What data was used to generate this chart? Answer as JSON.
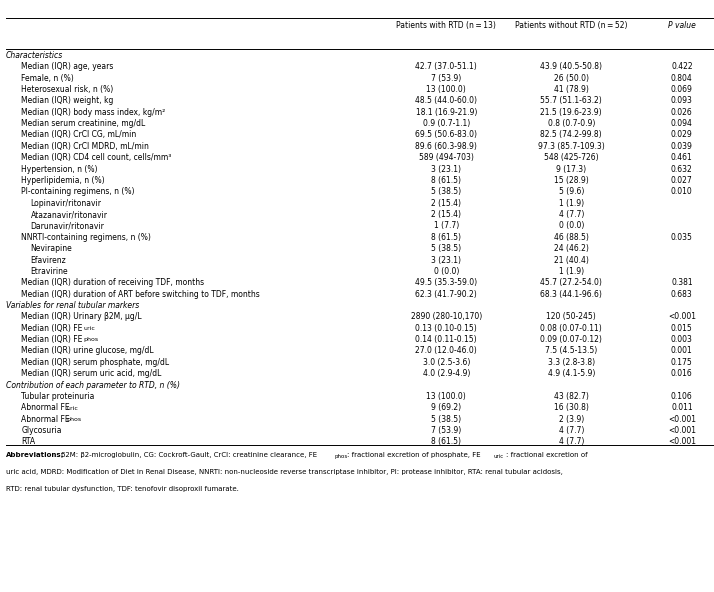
{
  "headers": [
    "Patients with RTD (n = 13)",
    "Patients without RTD (n = 52)",
    "P value"
  ],
  "rows": [
    {
      "text": "Characteristics",
      "col1": "",
      "col2": "",
      "col3": "",
      "italic": true,
      "indent": 0
    },
    {
      "text": "Median (IQR) age, years",
      "col1": "42.7 (37.0-51.1)",
      "col2": "43.9 (40.5-50.8)",
      "col3": "0.422",
      "italic": false,
      "indent": 1
    },
    {
      "text": "Female, n (%)",
      "col1": "7 (53.9)",
      "col2": "26 (50.0)",
      "col3": "0.804",
      "italic": false,
      "indent": 1
    },
    {
      "text": "Heterosexual risk, n (%)",
      "col1": "13 (100.0)",
      "col2": "41 (78.9)",
      "col3": "0.069",
      "italic": false,
      "indent": 1
    },
    {
      "text": "Median (IQR) weight, kg",
      "col1": "48.5 (44.0-60.0)",
      "col2": "55.7 (51.1-63.2)",
      "col3": "0.093",
      "italic": false,
      "indent": 1
    },
    {
      "text": "Median (IQR) body mass index, kg/m²",
      "col1": "18.1 (16.9-21.9)",
      "col2": "21.5 (19.6-23.9)",
      "col3": "0.026",
      "italic": false,
      "indent": 1
    },
    {
      "text": "Median serum creatinine, mg/dL",
      "col1": "0.9 (0.7-1.1)",
      "col2": "0.8 (0.7-0.9)",
      "col3": "0.094",
      "italic": false,
      "indent": 1
    },
    {
      "text": "Median (IQR) CrCl CG, mL/min",
      "col1": "69.5 (50.6-83.0)",
      "col2": "82.5 (74.2-99.8)",
      "col3": "0.029",
      "italic": false,
      "indent": 1
    },
    {
      "text": "Median (IQR) CrCl MDRD, mL/min",
      "col1": "89.6 (60.3-98.9)",
      "col2": "97.3 (85.7-109.3)",
      "col3": "0.039",
      "italic": false,
      "indent": 1
    },
    {
      "text": "Median (IQR) CD4 cell count, cells/mm³",
      "col1": "589 (494-703)",
      "col2": "548 (425-726)",
      "col3": "0.461",
      "italic": false,
      "indent": 1
    },
    {
      "text": "Hypertension, n (%)",
      "col1": "3 (23.1)",
      "col2": "9 (17.3)",
      "col3": "0.632",
      "italic": false,
      "indent": 1
    },
    {
      "text": "Hyperlipidemia, n (%)",
      "col1": "8 (61.5)",
      "col2": "15 (28.9)",
      "col3": "0.027",
      "italic": false,
      "indent": 1
    },
    {
      "text": "PI-containing regimens, n (%)",
      "col1": "5 (38.5)",
      "col2": "5 (9.6)",
      "col3": "0.010",
      "italic": false,
      "indent": 1
    },
    {
      "text": "Lopinavir/ritonavir",
      "col1": "2 (15.4)",
      "col2": "1 (1.9)",
      "col3": "",
      "italic": false,
      "indent": 2
    },
    {
      "text": "Atazanavir/ritonavir",
      "col1": "2 (15.4)",
      "col2": "4 (7.7)",
      "col3": "",
      "italic": false,
      "indent": 2
    },
    {
      "text": "Darunavir/ritonavir",
      "col1": "1 (7.7)",
      "col2": "0 (0.0)",
      "col3": "",
      "italic": false,
      "indent": 2
    },
    {
      "text": "NNRTI-containing regimens, n (%)",
      "col1": "8 (61.5)",
      "col2": "46 (88.5)",
      "col3": "0.035",
      "italic": false,
      "indent": 1
    },
    {
      "text": "Nevirapine",
      "col1": "5 (38.5)",
      "col2": "24 (46.2)",
      "col3": "",
      "italic": false,
      "indent": 2
    },
    {
      "text": "Efavirenz",
      "col1": "3 (23.1)",
      "col2": "21 (40.4)",
      "col3": "",
      "italic": false,
      "indent": 2
    },
    {
      "text": "Etravirine",
      "col1": "0 (0.0)",
      "col2": "1 (1.9)",
      "col3": "",
      "italic": false,
      "indent": 2
    },
    {
      "text": "Median (IQR) duration of receiving TDF, months",
      "col1": "49.5 (35.3-59.0)",
      "col2": "45.7 (27.2-54.0)",
      "col3": "0.381",
      "italic": false,
      "indent": 1
    },
    {
      "text": "Median (IQR) duration of ART before switching to TDF, months",
      "col1": "62.3 (41.7-90.2)",
      "col2": "68.3 (44.1-96.6)",
      "col3": "0.683",
      "italic": false,
      "indent": 1
    },
    {
      "text": "Variables for renal tubular markers",
      "col1": "",
      "col2": "",
      "col3": "",
      "italic": true,
      "indent": 0
    },
    {
      "text": "Median (IQR) Urinary β2M, µg/L",
      "col1": "2890 (280-10,170)",
      "col2": "120 (50-245)",
      "col3": "<0.001",
      "italic": false,
      "indent": 1
    },
    {
      "text": "Median (IQR) FE|uric|",
      "col1": "0.13 (0.10-0.15)",
      "col2": "0.08 (0.07-0.11)",
      "col3": "0.015",
      "italic": false,
      "indent": 1,
      "subscript": "uric"
    },
    {
      "text": "Median (IQR) FE|phos|",
      "col1": "0.14 (0.11-0.15)",
      "col2": "0.09 (0.07-0.12)",
      "col3": "0.003",
      "italic": false,
      "indent": 1,
      "subscript": "phos"
    },
    {
      "text": "Median (IQR) urine glucose, mg/dL",
      "col1": "27.0 (12.0-46.0)",
      "col2": "7.5 (4.5-13.5)",
      "col3": "0.001",
      "italic": false,
      "indent": 1
    },
    {
      "text": "Median (IQR) serum phosphate, mg/dL",
      "col1": "3.0 (2.5-3.6)",
      "col2": "3.3 (2.8-3.8)",
      "col3": "0.175",
      "italic": false,
      "indent": 1
    },
    {
      "text": "Median (IQR) serum uric acid, mg/dL",
      "col1": "4.0 (2.9-4.9)",
      "col2": "4.9 (4.1-5.9)",
      "col3": "0.016",
      "italic": false,
      "indent": 1
    },
    {
      "text": "Contribution of each parameter to RTD, n (%)",
      "col1": "",
      "col2": "",
      "col3": "",
      "italic": true,
      "indent": 0
    },
    {
      "text": "Tubular proteinuria",
      "col1": "13 (100.0)",
      "col2": "43 (82.7)",
      "col3": "0.106",
      "italic": false,
      "indent": 1
    },
    {
      "text": "Abnormal FE|uric|",
      "col1": "9 (69.2)",
      "col2": "16 (30.8)",
      "col3": "0.011",
      "italic": false,
      "indent": 1,
      "subscript": "uric"
    },
    {
      "text": "Abnormal FE|phos|",
      "col1": "5 (38.5)",
      "col2": "2 (3.9)",
      "col3": "<0.001",
      "italic": false,
      "indent": 1,
      "subscript": "phos"
    },
    {
      "text": "Glycosuria",
      "col1": "7 (53.9)",
      "col2": "4 (7.7)",
      "col3": "<0.001",
      "italic": false,
      "indent": 1
    },
    {
      "text": "RTA",
      "col1": "8 (61.5)",
      "col2": "4 (7.7)",
      "col3": "<0.001",
      "italic": false,
      "indent": 1
    }
  ],
  "footnote_bold": "Abbreviations:",
  "footnote_rest": " β2M: β2-microglobulin, CG: Cockroft-Gault, CrCl: creatinine clearance, FE",
  "footnote_line1_after": "phos: fractional excretion of phosphate, FE",
  "footnote_line1_end": "uric: fractional excretion of",
  "footnote_line2": "uric acid, MDRD: Modification of Diet in Renal Disease, NNRTI: non-nucleoside reverse transcriptase inhibitor, PI: protease inhibitor, RTA: renal tubular acidosis,",
  "footnote_line3": "RTD: renal tubular dysfunction, TDF: tenofovir disoproxil fumarate.",
  "fig_width": 7.14,
  "fig_height": 5.92,
  "dpi": 100
}
